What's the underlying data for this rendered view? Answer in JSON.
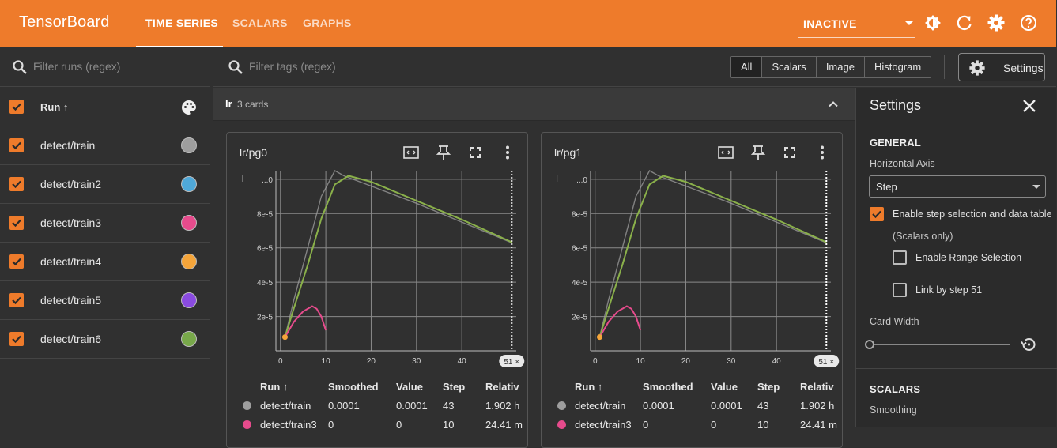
{
  "app": {
    "title": "TensorBoard",
    "tabs": [
      {
        "label": "TIME SERIES",
        "active": true
      },
      {
        "label": "SCALARS",
        "active": false
      },
      {
        "label": "GRAPHS",
        "active": false
      }
    ],
    "status": "INACTIVE",
    "accent_color": "#ee7b2b",
    "top_icons": [
      "theme-icon",
      "refresh-icon",
      "gear-icon",
      "help-icon"
    ]
  },
  "runs_panel": {
    "search_placeholder": "Filter runs (regex)",
    "header_label": "Run ↑",
    "header_icon": "palette-icon",
    "runs": [
      {
        "name": "detect/train",
        "color": "#9e9e9e",
        "checked": true
      },
      {
        "name": "detect/train2",
        "color": "#4fa8d8",
        "checked": true
      },
      {
        "name": "detect/train3",
        "color": "#e64b8c",
        "checked": true
      },
      {
        "name": "detect/train4",
        "color": "#f5a53a",
        "checked": true
      },
      {
        "name": "detect/train5",
        "color": "#8a4be0",
        "checked": true
      },
      {
        "name": "detect/train6",
        "color": "#78a84a",
        "checked": true
      }
    ]
  },
  "main": {
    "tags_placeholder": "Filter tags (regex)",
    "type_filters": [
      "All",
      "Scalars",
      "Image",
      "Histogram"
    ],
    "active_filter": "All",
    "settings_button": "Settings",
    "group": {
      "name": "lr",
      "count_label": "3 cards"
    },
    "cards": [
      {
        "title": "lr/pg0",
        "step_badge": "51 ×",
        "columns": [
          "Run ↑",
          "Smoothed",
          "Value",
          "Step",
          "Relativ"
        ],
        "rows": [
          {
            "run": "detect/train",
            "color": "#9e9e9e",
            "smoothed": "0.0001",
            "value": "0.0001",
            "step": "43",
            "relative": "1.902 h"
          },
          {
            "run": "detect/train3",
            "color": "#e64b8c",
            "smoothed": "0",
            "value": "0",
            "step": "10",
            "relative": "24.41 m"
          }
        ]
      },
      {
        "title": "lr/pg1",
        "step_badge": "51 ×",
        "columns": [
          "Run ↑",
          "Smoothed",
          "Value",
          "Step",
          "Relativ"
        ],
        "rows": [
          {
            "run": "detect/train",
            "color": "#9e9e9e",
            "smoothed": "0.0001",
            "value": "0.0001",
            "step": "43",
            "relative": "1.902 h"
          },
          {
            "run": "detect/train3",
            "color": "#e64b8c",
            "smoothed": "0",
            "value": "0",
            "step": "10",
            "relative": "24.41 m"
          }
        ]
      }
    ]
  },
  "settings": {
    "title": "Settings",
    "general_heading": "GENERAL",
    "horizontal_axis_label": "Horizontal Axis",
    "horizontal_axis_value": "Step",
    "step_selection_label": "Enable step selection and data table",
    "step_selection_sub": "(Scalars only)",
    "step_selection_checked": true,
    "range_selection_label": "Enable Range Selection",
    "range_selection_checked": false,
    "link_step_label": "Link by step 51",
    "link_step_checked": false,
    "card_width_label": "Card Width",
    "scalars_heading": "SCALARS",
    "smoothing_label": "Smoothing"
  },
  "chart_data": [
    {
      "type": "line",
      "title": "lr/pg0",
      "xlabel": "",
      "ylabel": "",
      "xlim": [
        -1,
        52
      ],
      "ylim": [
        0,
        0.000105
      ],
      "x_ticks": [
        "0",
        "10",
        "20",
        "30",
        "40"
      ],
      "y_ticks": [
        "2e-5",
        "4e-5",
        "6e-5",
        "8e-5",
        "...0"
      ],
      "grid": true,
      "selected_step": 51,
      "series": [
        {
          "name": "detect/train",
          "color": "#9e9e9e",
          "x": [
            1,
            3,
            6,
            9,
            12,
            14,
            20,
            30,
            40,
            51
          ],
          "y": [
            8e-06,
            3e-05,
            6e-05,
            9e-05,
            0.000105,
            0.000102,
            9.6e-05,
            8.6e-05,
            7.5e-05,
            6.3e-05
          ]
        },
        {
          "name": "detect/train6",
          "color": "#8ab04a",
          "x": [
            1,
            3,
            6,
            9,
            12,
            15,
            20,
            30,
            40,
            51
          ],
          "y": [
            8e-06,
            2.5e-05,
            5e-05,
            7.7e-05,
            9.7e-05,
            0.000102,
            9.85e-05,
            8.75e-05,
            7.65e-05,
            6.33e-05
          ]
        },
        {
          "name": "detect/train3",
          "color": "#e64b8c",
          "x": [
            1,
            3,
            5,
            7,
            8,
            9,
            10
          ],
          "y": [
            8e-06,
            1.7e-05,
            2.3e-05,
            2.6e-05,
            2.45e-05,
            2e-05,
            1.2e-05
          ]
        },
        {
          "name": "detect/train4",
          "color": "#f5a53a",
          "x": [
            1
          ],
          "y": [
            8e-06
          ]
        }
      ]
    },
    {
      "type": "line",
      "title": "lr/pg1",
      "xlabel": "",
      "ylabel": "",
      "xlim": [
        -1,
        52
      ],
      "ylim": [
        0,
        0.000105
      ],
      "x_ticks": [
        "0",
        "10",
        "20",
        "30",
        "40"
      ],
      "y_ticks": [
        "2e-5",
        "4e-5",
        "6e-5",
        "8e-5",
        "...0"
      ],
      "grid": true,
      "selected_step": 51,
      "series": [
        {
          "name": "detect/train",
          "color": "#9e9e9e",
          "x": [
            1,
            3,
            6,
            9,
            12,
            14,
            20,
            30,
            40,
            51
          ],
          "y": [
            8e-06,
            3e-05,
            6e-05,
            9e-05,
            0.000105,
            0.000102,
            9.6e-05,
            8.6e-05,
            7.5e-05,
            6.3e-05
          ]
        },
        {
          "name": "detect/train6",
          "color": "#8ab04a",
          "x": [
            1,
            3,
            6,
            9,
            12,
            15,
            20,
            30,
            40,
            51
          ],
          "y": [
            8e-06,
            2.5e-05,
            5e-05,
            7.7e-05,
            9.7e-05,
            0.000102,
            9.85e-05,
            8.75e-05,
            7.65e-05,
            6.33e-05
          ]
        },
        {
          "name": "detect/train3",
          "color": "#e64b8c",
          "x": [
            1,
            3,
            5,
            7,
            8,
            9,
            10
          ],
          "y": [
            8e-06,
            1.7e-05,
            2.3e-05,
            2.6e-05,
            2.45e-05,
            2e-05,
            1.2e-05
          ]
        },
        {
          "name": "detect/train4",
          "color": "#f5a53a",
          "x": [
            1
          ],
          "y": [
            8e-06
          ]
        }
      ]
    }
  ]
}
